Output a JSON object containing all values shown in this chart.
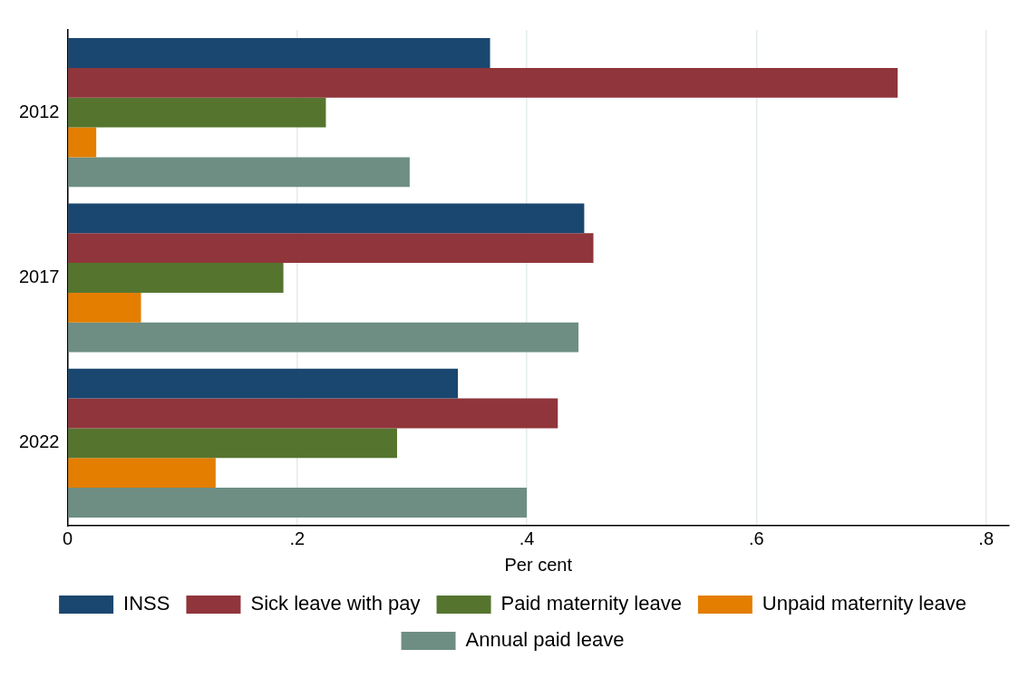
{
  "chart_data": {
    "type": "bar",
    "orientation": "horizontal",
    "xlabel": "Per cent",
    "categories": [
      "2012",
      "2017",
      "2022"
    ],
    "series": [
      {
        "name": "INSS",
        "color": "#1a476f",
        "values": [
          0.368,
          0.45,
          0.34
        ]
      },
      {
        "name": "Sick leave with pay",
        "color": "#90353b",
        "values": [
          0.723,
          0.458,
          0.427
        ]
      },
      {
        "name": "Paid maternity leave",
        "color": "#55752f",
        "values": [
          0.225,
          0.188,
          0.287
        ]
      },
      {
        "name": "Unpaid maternity leave",
        "color": "#e37e00",
        "values": [
          0.025,
          0.064,
          0.129
        ]
      },
      {
        "name": "Annual paid leave",
        "color": "#6e8e84",
        "values": [
          0.298,
          0.445,
          0.4
        ]
      }
    ],
    "xlim": [
      0,
      0.82
    ],
    "xticks": [
      {
        "value": 0,
        "label": "0"
      },
      {
        "value": 0.2,
        "label": ".2"
      },
      {
        "value": 0.4,
        "label": ".4"
      },
      {
        "value": 0.6,
        "label": ".6"
      },
      {
        "value": 0.8,
        "label": ".8"
      }
    ],
    "grid": "x",
    "legend": "bottom"
  }
}
